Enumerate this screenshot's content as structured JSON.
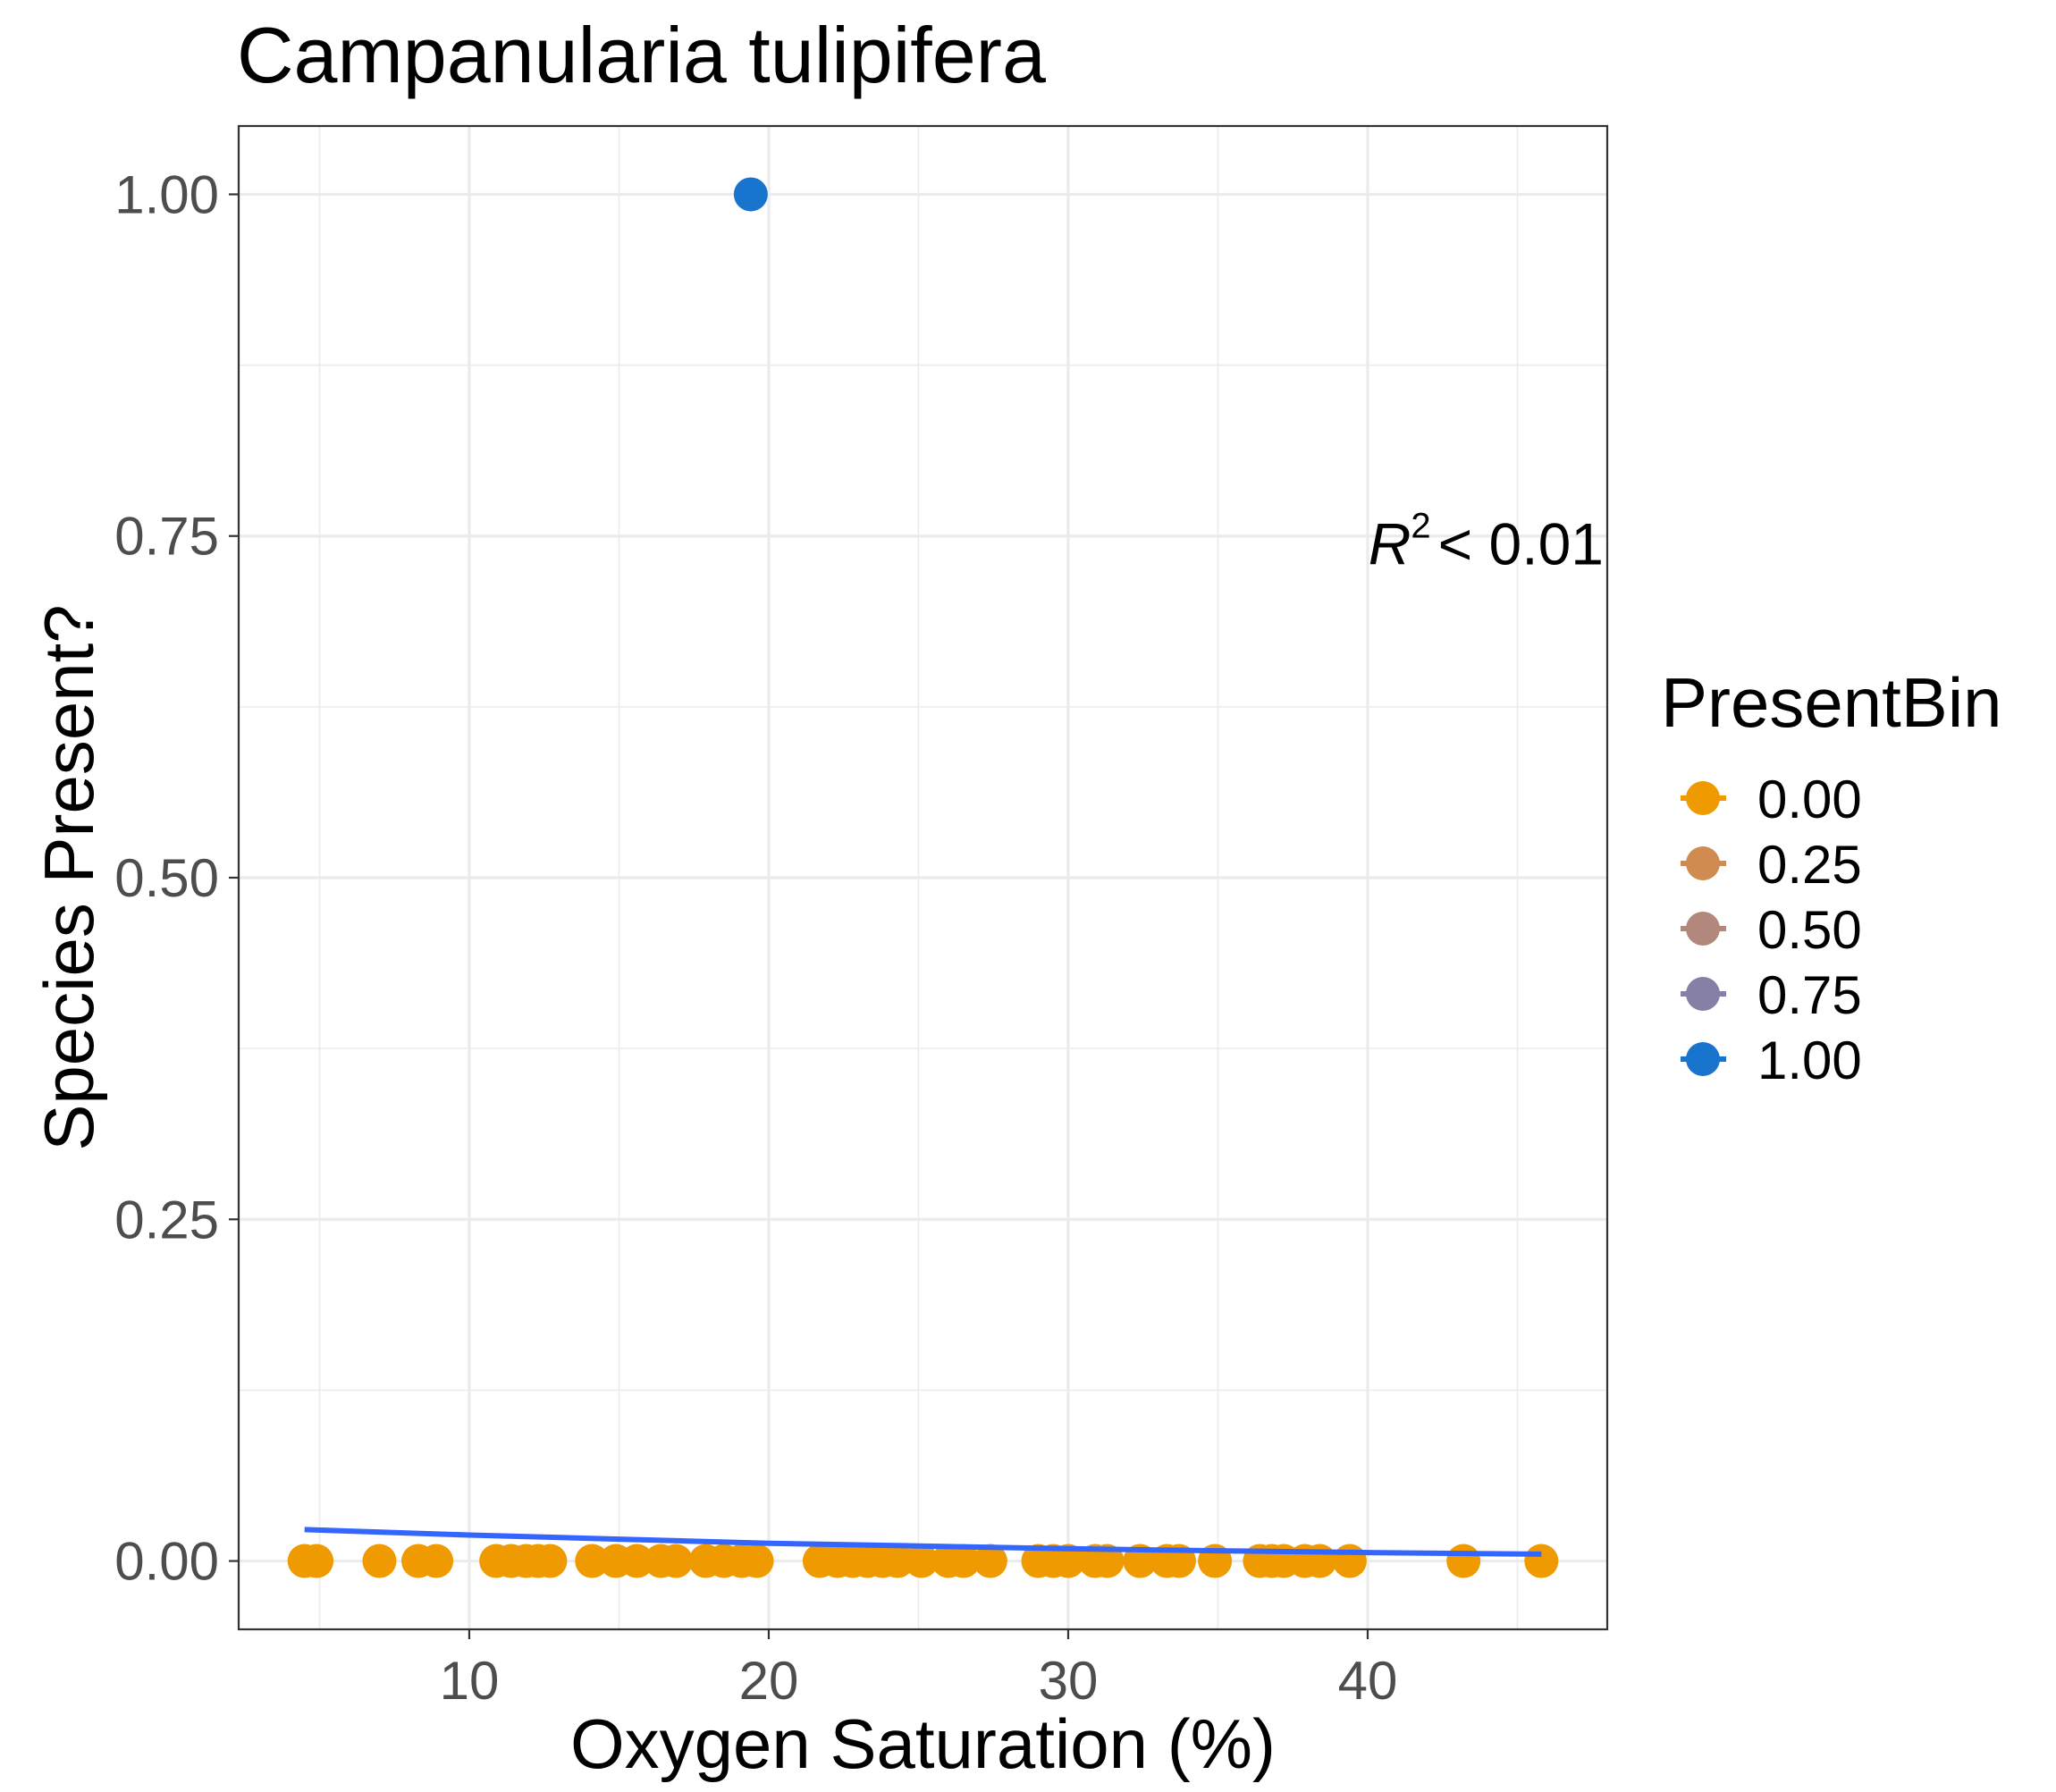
{
  "chart_data": {
    "type": "scatter",
    "title": "Campanularia tulipifera",
    "xlabel": "Oxygen Saturation (%)",
    "ylabel": "Species Present?",
    "xlim": [
      2.3,
      48.0
    ],
    "ylim": [
      -0.05,
      1.05
    ],
    "x_ticks": [
      10,
      20,
      30,
      40
    ],
    "y_ticks": [
      0.0,
      0.25,
      0.5,
      0.75,
      1.0
    ],
    "x_tick_labels": [
      "10",
      "20",
      "30",
      "40"
    ],
    "y_tick_labels": [
      "0.00",
      "0.25",
      "0.50",
      "0.75",
      "1.00"
    ],
    "grid": true,
    "legend": {
      "title": "PresentBin",
      "placement": "right",
      "entries": [
        {
          "label": "0.00",
          "color": "#EE9A00"
        },
        {
          "label": "0.25",
          "color": "#D08C50"
        },
        {
          "label": "0.50",
          "color": "#B2887C"
        },
        {
          "label": "0.75",
          "color": "#867FA6"
        },
        {
          "label": "1.00",
          "color": "#1874CD"
        }
      ]
    },
    "annotation": {
      "prefix": "R",
      "superscript": "2",
      "text": "< 0.01"
    },
    "series": [
      {
        "type": "points",
        "color": "#EE9A00",
        "x": [
          4.5,
          4.9,
          7.0,
          8.3,
          8.9,
          10.9,
          11.4,
          11.9,
          12.3,
          12.7,
          14.1,
          14.9,
          15.6,
          16.4,
          16.9,
          17.9,
          18.5,
          19.1,
          19.6,
          21.7,
          22.3,
          22.8,
          23.3,
          23.8,
          24.3,
          25.1,
          26.0,
          26.5,
          27.4,
          29.0,
          29.5,
          30.0,
          30.9,
          31.3,
          32.4,
          33.3,
          33.7,
          34.9,
          36.4,
          36.8,
          37.2,
          37.9,
          38.4,
          39.4,
          43.2,
          45.8
        ],
        "y": [
          0,
          0,
          0,
          0,
          0,
          0,
          0,
          0,
          0,
          0,
          0,
          0,
          0,
          0,
          0,
          0,
          0,
          0,
          0,
          0,
          0,
          0,
          0,
          0,
          0,
          0,
          0,
          0,
          0,
          0,
          0,
          0,
          0,
          0,
          0,
          0,
          0,
          0,
          0,
          0,
          0,
          0,
          0,
          0,
          0,
          0
        ]
      },
      {
        "type": "points",
        "color": "#1874CD",
        "x": [
          19.4
        ],
        "y": [
          1
        ]
      },
      {
        "type": "line",
        "color": "#3366FF",
        "x": [
          4.5,
          10,
          15,
          20,
          25,
          30,
          35,
          40,
          45.8
        ],
        "y": [
          0.023,
          0.019,
          0.016,
          0.013,
          0.011,
          0.009,
          0.0075,
          0.0062,
          0.005
        ]
      }
    ]
  }
}
